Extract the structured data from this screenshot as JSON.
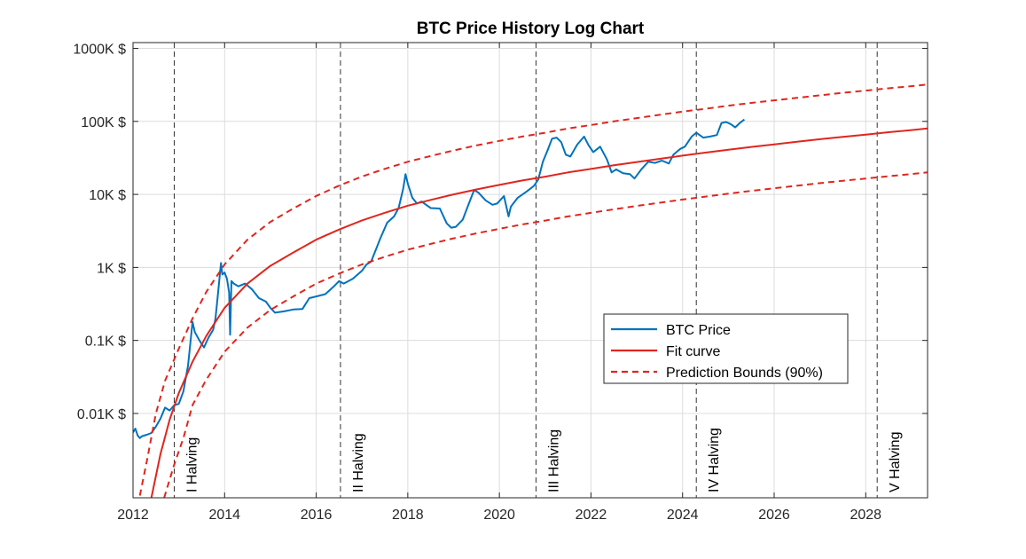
{
  "chart_data": {
    "type": "line",
    "title": "BTC Price History Log Chart",
    "xlabel": "",
    "ylabel": "",
    "y_scale": "log",
    "xlim": [
      2012,
      2029.35
    ],
    "ylim": [
      0.7,
      1200000
    ],
    "grid": true,
    "legend_position": "center-right",
    "x_ticks": [
      2012,
      2014,
      2016,
      2018,
      2020,
      2022,
      2024,
      2026,
      2028
    ],
    "x_tick_labels": [
      "2012",
      "2014",
      "2016",
      "2018",
      "2020",
      "2022",
      "2024",
      "2026",
      "2028"
    ],
    "y_ticks": [
      10,
      100,
      1000,
      10000,
      100000,
      1000000
    ],
    "y_tick_labels": [
      "0.01K $",
      "0.1K $",
      "1K $",
      "10K $",
      "100K $",
      "1000K $"
    ],
    "series": [
      {
        "name": "BTC Price",
        "color": "#0072BD",
        "style": "solid",
        "x": [
          2012.0,
          2012.05,
          2012.1,
          2012.15,
          2012.2,
          2012.3,
          2012.4,
          2012.5,
          2012.6,
          2012.7,
          2012.8,
          2012.9,
          2013.0,
          2013.1,
          2013.2,
          2013.25,
          2013.3,
          2013.35,
          2013.45,
          2013.55,
          2013.65,
          2013.75,
          2013.8,
          2013.85,
          2013.92,
          2013.95,
          2014.0,
          2014.05,
          2014.1,
          2014.12,
          2014.15,
          2014.2,
          2014.3,
          2014.45,
          2014.6,
          2014.75,
          2014.9,
          2015.0,
          2015.1,
          2015.3,
          2015.5,
          2015.7,
          2015.85,
          2016.0,
          2016.2,
          2016.4,
          2016.5,
          2016.6,
          2016.8,
          2017.0,
          2017.1,
          2017.2,
          2017.4,
          2017.55,
          2017.7,
          2017.8,
          2017.9,
          2017.95,
          2018.0,
          2018.1,
          2018.2,
          2018.3,
          2018.5,
          2018.7,
          2018.85,
          2018.95,
          2019.05,
          2019.2,
          2019.35,
          2019.45,
          2019.55,
          2019.7,
          2019.85,
          2019.95,
          2020.1,
          2020.2,
          2020.25,
          2020.4,
          2020.6,
          2020.75,
          2020.85,
          2020.95,
          2021.05,
          2021.15,
          2021.25,
          2021.35,
          2021.45,
          2021.55,
          2021.7,
          2021.85,
          2021.95,
          2022.05,
          2022.2,
          2022.35,
          2022.45,
          2022.55,
          2022.7,
          2022.85,
          2022.95,
          2023.1,
          2023.25,
          2023.4,
          2023.55,
          2023.7,
          2023.8,
          2023.95,
          2024.05,
          2024.2,
          2024.3,
          2024.45,
          2024.6,
          2024.75,
          2024.85,
          2024.95,
          2025.05,
          2025.15,
          2025.25,
          2025.35
        ],
        "y": [
          5.5,
          6.2,
          5.0,
          4.6,
          4.9,
          5.1,
          5.4,
          6.6,
          8.5,
          12,
          11,
          13,
          13.5,
          20,
          45,
          90,
          180,
          130,
          100,
          80,
          110,
          140,
          200,
          400,
          1150,
          800,
          850,
          700,
          450,
          120,
          650,
          600,
          550,
          600,
          500,
          380,
          340,
          280,
          240,
          250,
          265,
          270,
          380,
          400,
          430,
          560,
          650,
          600,
          700,
          900,
          1100,
          1200,
          2500,
          4100,
          5000,
          6500,
          12000,
          19000,
          14000,
          9000,
          7500,
          8000,
          6500,
          6400,
          4000,
          3500,
          3600,
          4500,
          8000,
          11500,
          10500,
          8300,
          7200,
          7500,
          9500,
          5000,
          6800,
          9000,
          11000,
          13000,
          16000,
          28000,
          40000,
          58000,
          60000,
          52000,
          35000,
          33000,
          48000,
          62000,
          47000,
          38000,
          45000,
          30000,
          20000,
          22000,
          19500,
          19000,
          16500,
          22000,
          28000,
          27000,
          29000,
          26500,
          35000,
          42000,
          45000,
          62000,
          70000,
          60000,
          62000,
          65000,
          95000,
          98000,
          92000,
          83000,
          95000,
          106000
        ]
      },
      {
        "name": "Fit curve",
        "color": "#E0261E",
        "style": "solid",
        "x": [
          2012.4,
          2012.6,
          2012.8,
          2013.0,
          2013.3,
          2013.6,
          2014.0,
          2014.5,
          2015.0,
          2015.5,
          2016.0,
          2016.5,
          2017.0,
          2017.5,
          2018.0,
          2018.5,
          2019.0,
          2019.5,
          2020.0,
          2020.5,
          2021.0,
          2021.5,
          2022.0,
          2022.5,
          2023.0,
          2023.5,
          2024.0,
          2024.5,
          2025.0,
          2025.5,
          2026.0,
          2026.5,
          2027.0,
          2027.5,
          2028.0,
          2028.5,
          2029.0,
          2029.35
        ],
        "y": [
          0.7,
          2.8,
          8.2,
          19,
          51,
          115,
          280,
          600,
          1050,
          1600,
          2400,
          3300,
          4400,
          5600,
          7000,
          8400,
          10000,
          11700,
          13500,
          15500,
          17500,
          20000,
          22300,
          25000,
          27800,
          30700,
          34000,
          37300,
          41000,
          44700,
          48500,
          52600,
          57000,
          61500,
          66000,
          71000,
          76000,
          80000
        ]
      },
      {
        "name": "Prediction Bounds (90%)",
        "color": "#E0261E",
        "style": "dashed",
        "x": [
          2012.15,
          2012.3,
          2012.5,
          2012.7,
          2013.0,
          2013.3,
          2013.6,
          2014.0,
          2014.5,
          2015.0,
          2015.5,
          2016.0,
          2016.5,
          2017.0,
          2017.5,
          2018.0,
          2018.5,
          2019.0,
          2019.5,
          2020.0,
          2020.5,
          2021.0,
          2021.5,
          2022.0,
          2022.5,
          2023.0,
          2023.5,
          2024.0,
          2024.5,
          2025.0,
          2025.5,
          2026.0,
          2026.5,
          2027.0,
          2027.5,
          2028.0,
          2028.5,
          2029.0,
          2029.35
        ],
        "y": [
          0.75,
          2.2,
          10,
          28,
          77,
          200,
          460,
          1100,
          2400,
          4200,
          6400,
          9500,
          13200,
          17600,
          22400,
          28000,
          33600,
          40000,
          46800,
          54000,
          62000,
          70000,
          80000,
          89200,
          100000,
          111000,
          123000,
          136000,
          149000,
          164000,
          179000,
          194000,
          210000,
          228000,
          246000,
          264000,
          284000,
          304000,
          320000
        ]
      },
      {
        "name": "",
        "color": "#E0261E",
        "style": "dashed",
        "x": [
          2012.68,
          2012.9,
          2013.1,
          2013.3,
          2013.6,
          2014.0,
          2014.5,
          2015.0,
          2015.5,
          2016.0,
          2016.5,
          2017.0,
          2017.5,
          2018.0,
          2018.5,
          2019.0,
          2019.5,
          2020.0,
          2020.5,
          2021.0,
          2021.5,
          2022.0,
          2022.5,
          2023.0,
          2023.5,
          2024.0,
          2024.5,
          2025.0,
          2025.5,
          2026.0,
          2026.5,
          2027.0,
          2027.5,
          2028.0,
          2028.5,
          2029.0,
          2029.35
        ],
        "y": [
          0.7,
          2.0,
          4.6,
          13,
          29,
          70,
          150,
          262,
          400,
          600,
          825,
          1100,
          1400,
          1750,
          2100,
          2500,
          2930,
          3380,
          3880,
          4380,
          5000,
          5580,
          6250,
          6950,
          7680,
          8500,
          9330,
          10250,
          11180,
          12130,
          13150,
          14250,
          15380,
          16500,
          17750,
          19000,
          20000
        ]
      }
    ],
    "legend": [
      {
        "label": "BTC Price",
        "color": "#0072BD",
        "style": "solid"
      },
      {
        "label": "Fit curve",
        "color": "#E0261E",
        "style": "solid"
      },
      {
        "label": "Prediction Bounds (90%)",
        "color": "#E0261E",
        "style": "dashed"
      }
    ],
    "annotations": [
      {
        "x": 2012.9,
        "label": "I Halving"
      },
      {
        "x": 2016.53,
        "label": "II Halving"
      },
      {
        "x": 2020.8,
        "label": "III Halving"
      },
      {
        "x": 2024.3,
        "label": "IV Halving"
      },
      {
        "x": 2028.25,
        "label": "V Halving"
      }
    ]
  }
}
